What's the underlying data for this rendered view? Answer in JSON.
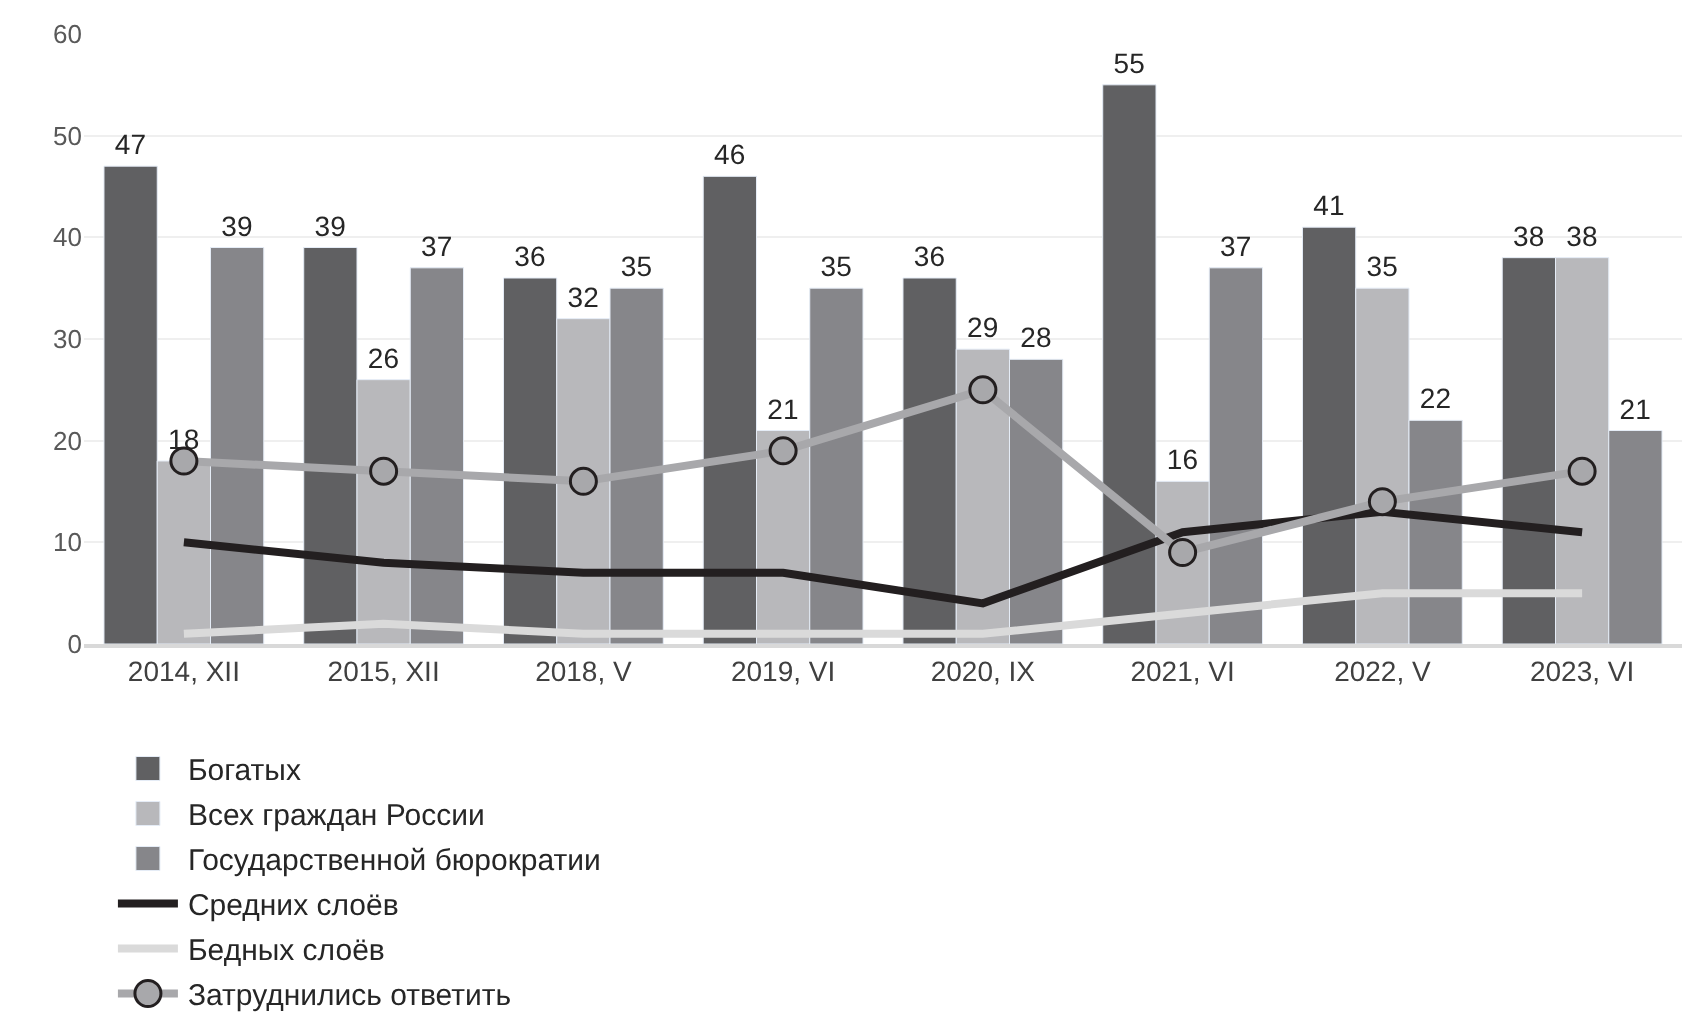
{
  "chart_data": {
    "type": "bar",
    "categories": [
      "2014, XII",
      "2015, XII",
      "2018, V",
      "2019, VI",
      "2020, IX",
      "2021, VI",
      "2022, V",
      "2023, VI"
    ],
    "ylim": [
      0,
      60
    ],
    "yticks": [
      0,
      10,
      20,
      30,
      40,
      50,
      60
    ],
    "grid": "y",
    "legend": "bottom",
    "series": [
      {
        "name": "Богатых",
        "color": "#606062",
        "values": [
          47,
          39,
          36,
          46,
          36,
          55,
          41,
          38
        ],
        "value_labels": [
          "47",
          "39",
          "36",
          "46",
          "36",
          "55",
          "41",
          "38"
        ]
      },
      {
        "name": "Всех граждан России",
        "color": "#b8b8bb",
        "values": [
          18,
          26,
          32,
          21,
          29,
          16,
          35,
          38
        ],
        "value_labels": [
          "18",
          "26",
          "32",
          "21",
          "29",
          "16",
          "35",
          "38"
        ]
      },
      {
        "name": "Государственной бюрократии",
        "color": "#86868a",
        "values": [
          39,
          37,
          35,
          35,
          28,
          37,
          22,
          21
        ],
        "value_labels": [
          "39",
          "37",
          "35",
          "35",
          "28",
          "37",
          "22",
          "21"
        ]
      },
      {
        "name": "Средних слоёв",
        "type": "line",
        "color": "#231f20",
        "marker": "none",
        "values": [
          10,
          8,
          7,
          7,
          4,
          11,
          13,
          11
        ]
      },
      {
        "name": "Бедных слоёв",
        "type": "line",
        "color": "#dadada",
        "marker": "none",
        "values": [
          1,
          2,
          1,
          1,
          1,
          3,
          5,
          5
        ]
      },
      {
        "name": "Затруднились ответить",
        "type": "line",
        "color": "#a8a8ab",
        "marker": "circle",
        "values": [
          18,
          17,
          16,
          19,
          25,
          9,
          14,
          17
        ]
      }
    ]
  }
}
